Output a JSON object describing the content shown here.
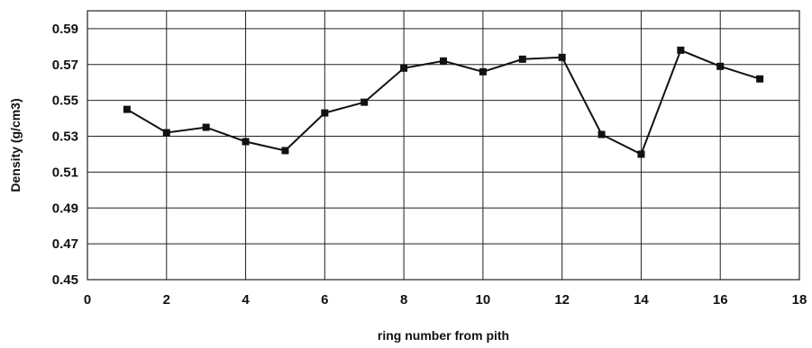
{
  "chart_data": {
    "type": "line",
    "title": "",
    "xlabel": "ring number from pith",
    "ylabel": "Density (g/cm3)",
    "xlim": [
      0,
      18
    ],
    "ylim": [
      0.45,
      0.6
    ],
    "x_ticks": [
      0,
      2,
      4,
      6,
      8,
      10,
      12,
      14,
      16,
      18
    ],
    "y_ticks": [
      0.45,
      0.47,
      0.49,
      0.51,
      0.53,
      0.55,
      0.57,
      0.59
    ],
    "x_tick_labels": [
      "0",
      "2",
      "4",
      "6",
      "8",
      "10",
      "12",
      "14",
      "16",
      "18"
    ],
    "y_tick_labels": [
      "0.45",
      "0.47",
      "0.49",
      "0.51",
      "0.53",
      "0.55",
      "0.57",
      "0.59"
    ],
    "grid": true,
    "legend": "none",
    "series": [
      {
        "x": [
          1,
          2,
          3,
          4,
          5,
          6,
          7,
          8,
          9,
          10,
          11,
          12,
          13,
          14,
          15,
          16,
          17
        ],
        "values": [
          0.545,
          0.532,
          0.535,
          0.527,
          0.522,
          0.543,
          0.549,
          0.568,
          0.572,
          0.566,
          0.573,
          0.574,
          0.531,
          0.52,
          0.578,
          0.569,
          0.562
        ],
        "color": "#111111",
        "marker": "square"
      }
    ]
  }
}
